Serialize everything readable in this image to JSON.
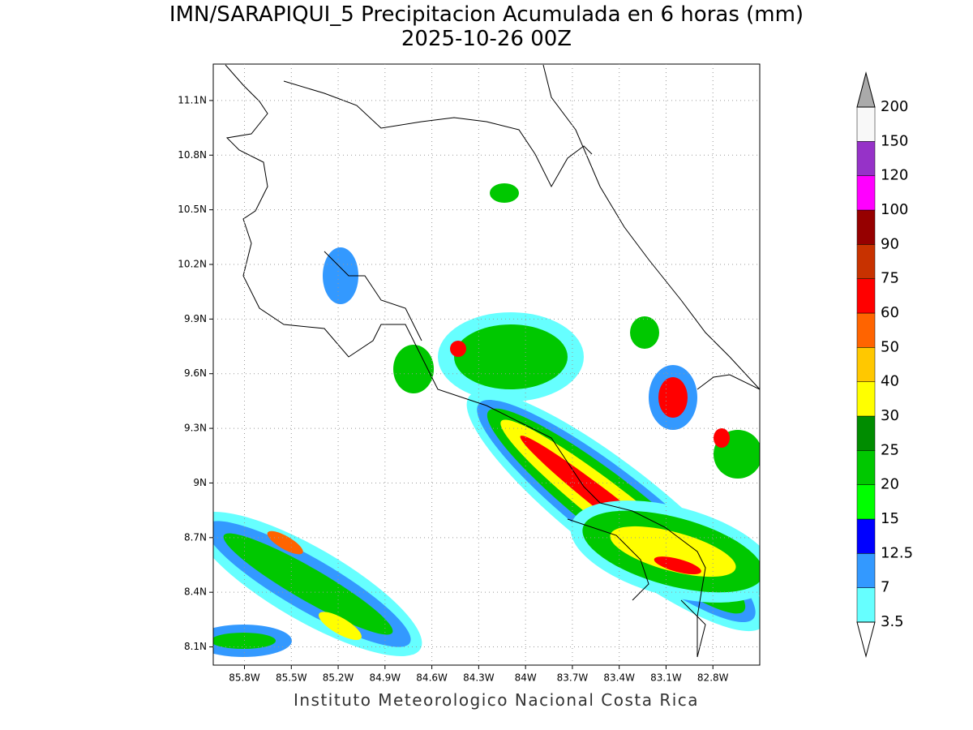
{
  "header": {
    "title": "IMN/SARAPIQUI_5 Precipitacion Acumulada en 6 horas (mm)",
    "subtitle": "2025-10-26 00Z"
  },
  "map": {
    "xlim": [
      -86.0,
      -82.5
    ],
    "ylim": [
      8.0,
      11.3
    ],
    "xticks": [
      {
        "value": -85.8,
        "label": "85.8W"
      },
      {
        "value": -85.5,
        "label": "85.5W"
      },
      {
        "value": -85.2,
        "label": "85.2W"
      },
      {
        "value": -84.9,
        "label": "84.9W"
      },
      {
        "value": -84.6,
        "label": "84.6W"
      },
      {
        "value": -84.3,
        "label": "84.3W"
      },
      {
        "value": -84.0,
        "label": "84W"
      },
      {
        "value": -83.7,
        "label": "83.7W"
      },
      {
        "value": -83.4,
        "label": "83.4W"
      },
      {
        "value": -83.1,
        "label": "83.1W"
      },
      {
        "value": -82.8,
        "label": "82.8W"
      }
    ],
    "yticks": [
      {
        "value": 8.1,
        "label": "8.1N"
      },
      {
        "value": 8.4,
        "label": "8.4N"
      },
      {
        "value": 8.7,
        "label": "8.7N"
      },
      {
        "value": 9.0,
        "label": "9N"
      },
      {
        "value": 9.3,
        "label": "9.3N"
      },
      {
        "value": 9.6,
        "label": "9.6N"
      },
      {
        "value": 9.9,
        "label": "9.9N"
      },
      {
        "value": 10.2,
        "label": "10.2N"
      },
      {
        "value": 10.5,
        "label": "10.5N"
      },
      {
        "value": 10.8,
        "label": "10.8N"
      },
      {
        "value": 11.1,
        "label": "11.1N"
      }
    ],
    "grid": true
  },
  "colorbar": {
    "levels": [
      3.5,
      7,
      12.5,
      15,
      20,
      25,
      30,
      40,
      50,
      60,
      75,
      90,
      100,
      120,
      150,
      200
    ],
    "colors": [
      "#66ffff",
      "#3399ff",
      "#0000ff",
      "#00ff00",
      "#00c800",
      "#008c00",
      "#ffff00",
      "#ffc800",
      "#ff6400",
      "#ff0000",
      "#c83200",
      "#960000",
      "#ff00ff",
      "#9632c8",
      "#f8f8f8"
    ],
    "under_color": "#ffffff",
    "over_color": "#aaaaaa"
  },
  "footer": "Instituto Meteorologico Nacional Costa Rica"
}
